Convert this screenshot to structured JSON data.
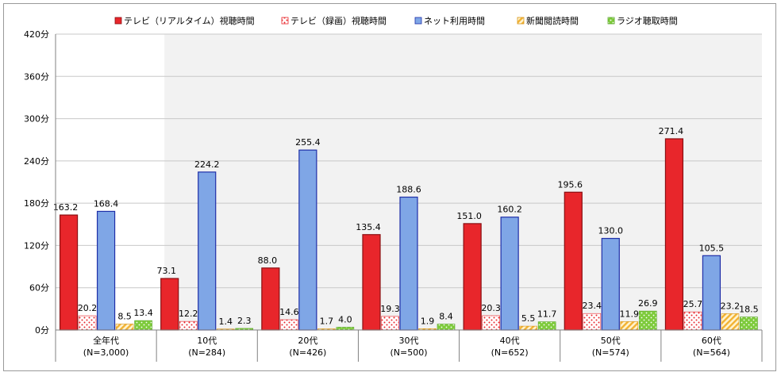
{
  "chart_data": {
    "type": "bar",
    "title": "",
    "xlabel": "",
    "ylabel": "",
    "ylim": [
      0,
      420
    ],
    "ytick_step": 60,
    "ytick_suffix": "分",
    "grid": true,
    "legend_position": "top",
    "categories": [
      {
        "name": "全年代",
        "n": "(N=3,000)"
      },
      {
        "name": "10代",
        "n": "(N=284)"
      },
      {
        "name": "20代",
        "n": "(N=426)"
      },
      {
        "name": "30代",
        "n": "(N=500)"
      },
      {
        "name": "40代",
        "n": "(N=652)"
      },
      {
        "name": "50代",
        "n": "(N=574)"
      },
      {
        "name": "60代",
        "n": "(N=564)"
      }
    ],
    "series": [
      {
        "name": "テレビ（リアルタイム）視聴時間",
        "color": "#e8262b",
        "pattern": "solid",
        "values": [
          163.2,
          73.1,
          88.0,
          135.4,
          151.0,
          195.6,
          271.4
        ]
      },
      {
        "name": "テレビ（録画）視聴時間",
        "color": "#e8262b",
        "pattern": "dots",
        "values": [
          20.2,
          12.2,
          14.6,
          19.3,
          20.3,
          23.4,
          25.7
        ]
      },
      {
        "name": "ネット利用時間",
        "color": "#7fa6e6",
        "pattern": "solid",
        "values": [
          168.4,
          224.2,
          255.4,
          188.6,
          160.2,
          130.0,
          105.5
        ]
      },
      {
        "name": "新聞閲読時間",
        "color": "#f2b233",
        "pattern": "stripes",
        "values": [
          8.5,
          1.4,
          1.7,
          1.9,
          5.5,
          11.9,
          23.2
        ]
      },
      {
        "name": "ラジオ聴取時間",
        "color": "#7ecb3c",
        "pattern": "speckle",
        "values": [
          13.4,
          2.3,
          4.0,
          8.4,
          11.7,
          26.9,
          18.5
        ]
      }
    ],
    "data_labels": [
      [
        "163.2",
        "20.2",
        "168.4",
        "8.5",
        "13.4"
      ],
      [
        "73.1",
        "12.2",
        "224.2",
        "1.4",
        "2.3"
      ],
      [
        "88.0",
        "14.6",
        "255.4",
        "1.7",
        "4.0"
      ],
      [
        "135.4",
        "19.3",
        "188.6",
        "1.9",
        "8.4"
      ],
      [
        "151.0",
        "20.3",
        "160.2",
        "5.5",
        "11.7"
      ],
      [
        "195.6",
        "23.4",
        "130.0",
        "11.9",
        "26.9"
      ],
      [
        "271.4",
        "25.7",
        "105.5",
        "23.2",
        "18.5"
      ]
    ]
  }
}
